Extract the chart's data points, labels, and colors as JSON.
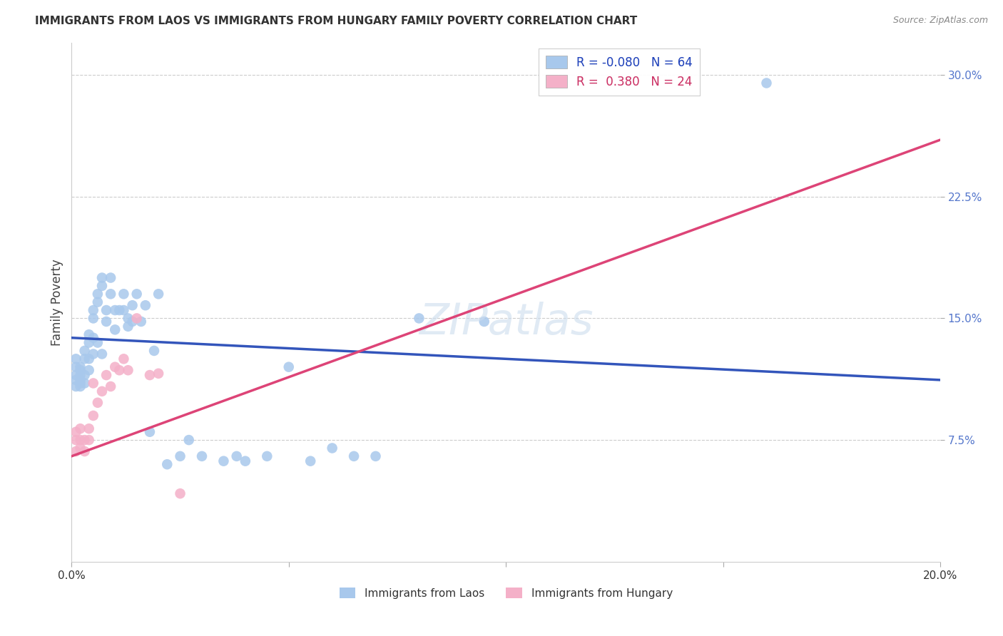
{
  "title": "IMMIGRANTS FROM LAOS VS IMMIGRANTS FROM HUNGARY FAMILY POVERTY CORRELATION CHART",
  "source": "Source: ZipAtlas.com",
  "ylabel": "Family Poverty",
  "ytick_labels": [
    "7.5%",
    "15.0%",
    "22.5%",
    "30.0%"
  ],
  "ytick_values": [
    0.075,
    0.15,
    0.225,
    0.3
  ],
  "xlim": [
    0.0,
    0.2
  ],
  "ylim": [
    0.0,
    0.32
  ],
  "legend1_label": "Immigrants from Laos",
  "legend2_label": "Immigrants from Hungary",
  "R_laos": -0.08,
  "N_laos": 64,
  "R_hungary": 0.38,
  "N_hungary": 24,
  "color_laos": "#A8C8EC",
  "color_hungary": "#F4B0C8",
  "color_laos_line": "#3355BB",
  "color_hungary_line": "#DD4477",
  "color_hungary_dashed": "#E8A0C0",
  "laos_x": [
    0.001,
    0.001,
    0.001,
    0.001,
    0.001,
    0.002,
    0.002,
    0.002,
    0.002,
    0.002,
    0.002,
    0.003,
    0.003,
    0.003,
    0.003,
    0.004,
    0.004,
    0.004,
    0.004,
    0.005,
    0.005,
    0.005,
    0.005,
    0.006,
    0.006,
    0.006,
    0.007,
    0.007,
    0.007,
    0.008,
    0.008,
    0.009,
    0.009,
    0.01,
    0.01,
    0.011,
    0.012,
    0.012,
    0.013,
    0.013,
    0.014,
    0.014,
    0.015,
    0.016,
    0.017,
    0.018,
    0.019,
    0.02,
    0.022,
    0.025,
    0.027,
    0.03,
    0.035,
    0.038,
    0.04,
    0.045,
    0.05,
    0.055,
    0.06,
    0.065,
    0.07,
    0.08,
    0.095,
    0.16
  ],
  "laos_y": [
    0.115,
    0.12,
    0.125,
    0.108,
    0.112,
    0.11,
    0.115,
    0.12,
    0.108,
    0.112,
    0.118,
    0.13,
    0.125,
    0.115,
    0.11,
    0.135,
    0.14,
    0.125,
    0.118,
    0.15,
    0.155,
    0.138,
    0.128,
    0.16,
    0.165,
    0.135,
    0.17,
    0.175,
    0.128,
    0.155,
    0.148,
    0.175,
    0.165,
    0.155,
    0.143,
    0.155,
    0.165,
    0.155,
    0.15,
    0.145,
    0.158,
    0.148,
    0.165,
    0.148,
    0.158,
    0.08,
    0.13,
    0.165,
    0.06,
    0.065,
    0.075,
    0.065,
    0.062,
    0.065,
    0.062,
    0.065,
    0.12,
    0.062,
    0.07,
    0.065,
    0.065,
    0.15,
    0.148,
    0.295
  ],
  "hungary_x": [
    0.001,
    0.001,
    0.001,
    0.002,
    0.002,
    0.002,
    0.003,
    0.003,
    0.004,
    0.004,
    0.005,
    0.005,
    0.006,
    0.007,
    0.008,
    0.009,
    0.01,
    0.011,
    0.012,
    0.013,
    0.015,
    0.018,
    0.02,
    0.025
  ],
  "hungary_y": [
    0.075,
    0.08,
    0.068,
    0.075,
    0.082,
    0.07,
    0.068,
    0.075,
    0.082,
    0.075,
    0.09,
    0.11,
    0.098,
    0.105,
    0.115,
    0.108,
    0.12,
    0.118,
    0.125,
    0.118,
    0.15,
    0.115,
    0.116,
    0.042
  ],
  "laos_line_x0": 0.0,
  "laos_line_y0": 0.138,
  "laos_line_x1": 0.2,
  "laos_line_y1": 0.112,
  "hungary_line_x0": 0.0,
  "hungary_line_y0": 0.065,
  "hungary_line_x1": 0.2,
  "hungary_line_y1": 0.26
}
